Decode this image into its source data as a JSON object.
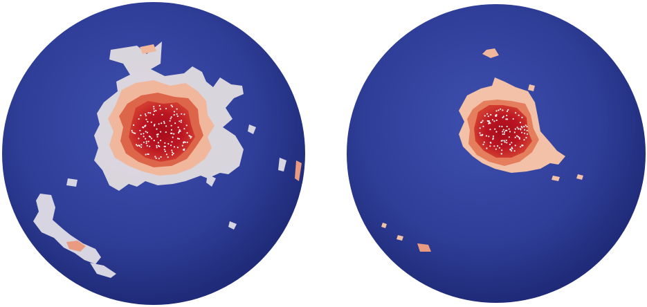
{
  "figure": {
    "panels": [
      {
        "name": "left-sphere",
        "description_hidden": "",
        "colors": {
          "background": "#2d3b91",
          "sphere_light": "#4a5cb8",
          "sphere_dark": "#1e2a75",
          "low": "#d9d9e6",
          "mid": "#f0b49a",
          "high": "#d9553d",
          "core": "#b20f1d",
          "points": "#f2f2f2"
        }
      },
      {
        "name": "right-sphere",
        "description_hidden": "",
        "colors": {
          "background": "#2d3b91",
          "sphere_light": "#4a5cb8",
          "sphere_dark": "#1e2a75",
          "low": "#f3c4ad",
          "mid": "#ea8e6b",
          "high": "#d9553d",
          "core": "#b20f1d",
          "points": "#f2f2f2"
        }
      }
    ]
  }
}
